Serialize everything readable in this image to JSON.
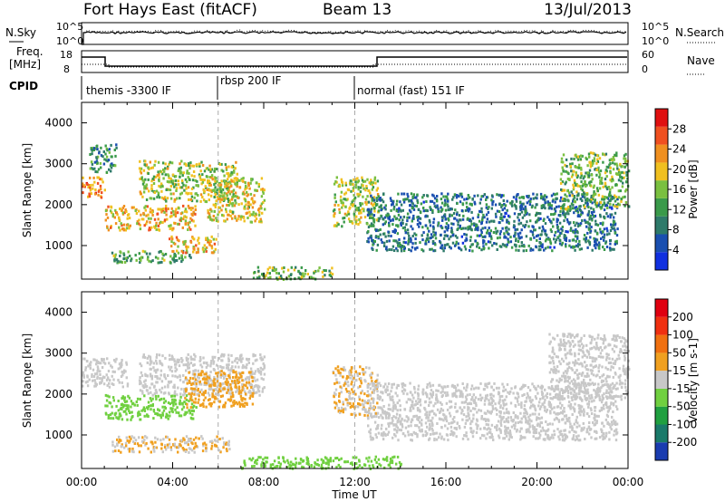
{
  "header": {
    "station": "Fort Hays East (fitACF)",
    "beam": "Beam 13",
    "date": "13/Jul/2013"
  },
  "noise_panel": {
    "left_label": "N.Sky",
    "left_ticks": [
      "10^5",
      "10^0"
    ],
    "right_label": "N.Search",
    "right_ticks": [
      "10^5",
      "10^0"
    ]
  },
  "freq_panel": {
    "left_label_1": "Freq.",
    "left_label_2": "[MHz]",
    "left_ticks": [
      "18",
      "8"
    ],
    "right_label": "Nave",
    "right_ticks": [
      "60",
      "0"
    ]
  },
  "cpid_panel": {
    "label": "CPID",
    "segments": [
      {
        "text": "themis -3300 IF",
        "start_hour": 0
      },
      {
        "text": "rbsp 200 IF",
        "start_hour": 6
      },
      {
        "text": "normal (fast) 151 IF",
        "start_hour": 12
      }
    ]
  },
  "x_axis": {
    "label": "Time UT",
    "ticks": [
      "00:00",
      "04:00",
      "08:00",
      "12:00",
      "16:00",
      "20:00",
      "00:00"
    ]
  },
  "chart_data": [
    {
      "type": "heatmap",
      "title": "",
      "xlabel": "Time UT",
      "ylabel": "Slant Range [km]",
      "xlim_hours": [
        0,
        24
      ],
      "ylim_km": [
        180,
        4500
      ],
      "yticks": [
        1000,
        2000,
        3000,
        4000
      ],
      "colorbar": {
        "label": "Power [dB]",
        "ticks": [
          28,
          24,
          20,
          16,
          12,
          8,
          4
        ],
        "range": [
          0,
          30
        ],
        "colors": [
          "#1030e0",
          "#1a4fb0",
          "#2e7a6a",
          "#3a9a4a",
          "#7ac040",
          "#f0c020",
          "#f09020",
          "#f05020",
          "#e01010"
        ]
      },
      "echo_regions": [
        {
          "t0": 0.0,
          "t1": 1.0,
          "r0": 2200,
          "r1": 2700,
          "power": 22
        },
        {
          "t0": 0.3,
          "t1": 1.5,
          "r0": 2800,
          "r1": 3500,
          "power": 10
        },
        {
          "t0": 1.0,
          "t1": 5.0,
          "r0": 1400,
          "r1": 2000,
          "power": 20
        },
        {
          "t0": 1.3,
          "t1": 4.8,
          "r0": 600,
          "r1": 900,
          "power": 12
        },
        {
          "t0": 2.5,
          "t1": 6.8,
          "r0": 2100,
          "r1": 3100,
          "power": 16
        },
        {
          "t0": 3.8,
          "t1": 6.0,
          "r0": 850,
          "r1": 1250,
          "power": 20
        },
        {
          "t0": 5.5,
          "t1": 8.0,
          "r0": 1600,
          "r1": 2700,
          "power": 18
        },
        {
          "t0": 7.5,
          "t1": 11.0,
          "r0": 200,
          "r1": 500,
          "power": 14
        },
        {
          "t0": 11.0,
          "t1": 13.0,
          "r0": 1500,
          "r1": 2700,
          "power": 16
        },
        {
          "t0": 12.5,
          "t1": 23.5,
          "r0": 900,
          "r1": 2300,
          "power": 8
        },
        {
          "t0": 21.0,
          "t1": 24.0,
          "r0": 1900,
          "r1": 3300,
          "power": 14
        }
      ]
    },
    {
      "type": "heatmap",
      "title": "",
      "xlabel": "Time UT",
      "ylabel": "Slant Range [km]",
      "xlim_hours": [
        0,
        24
      ],
      "ylim_km": [
        180,
        4500
      ],
      "yticks": [
        1000,
        2000,
        3000,
        4000
      ],
      "colorbar": {
        "label": "Velocity [m s-1]",
        "ticks": [
          200,
          100,
          50,
          15,
          -15,
          -50,
          -100,
          -200
        ],
        "range": [
          -250,
          250
        ],
        "colors": [
          "#1a3cb0",
          "#1a7a6a",
          "#20a040",
          "#70d040",
          "#c8c8c8",
          "#f0a020",
          "#f07010",
          "#f03010",
          "#e00010"
        ]
      },
      "echo_regions": [
        {
          "t0": 0.0,
          "t1": 2.0,
          "r0": 2200,
          "r1": 2900,
          "velocity": 0
        },
        {
          "t0": 1.0,
          "t1": 5.0,
          "r0": 1400,
          "r1": 2000,
          "velocity": -60
        },
        {
          "t0": 2.5,
          "t1": 8.0,
          "r0": 2000,
          "r1": 3000,
          "velocity": 0
        },
        {
          "t0": 4.5,
          "t1": 7.5,
          "r0": 1700,
          "r1": 2600,
          "velocity": 60
        },
        {
          "t0": 1.3,
          "t1": 6.5,
          "r0": 600,
          "r1": 1000,
          "velocity": 30
        },
        {
          "t0": 7.0,
          "t1": 14.0,
          "r0": 200,
          "r1": 500,
          "velocity": -60
        },
        {
          "t0": 11.0,
          "t1": 13.0,
          "r0": 1500,
          "r1": 2700,
          "velocity": 30
        },
        {
          "t0": 12.5,
          "t1": 23.5,
          "r0": 900,
          "r1": 2300,
          "velocity": 0
        },
        {
          "t0": 20.5,
          "t1": 24.0,
          "r0": 1900,
          "r1": 3500,
          "velocity": 0
        }
      ]
    }
  ]
}
